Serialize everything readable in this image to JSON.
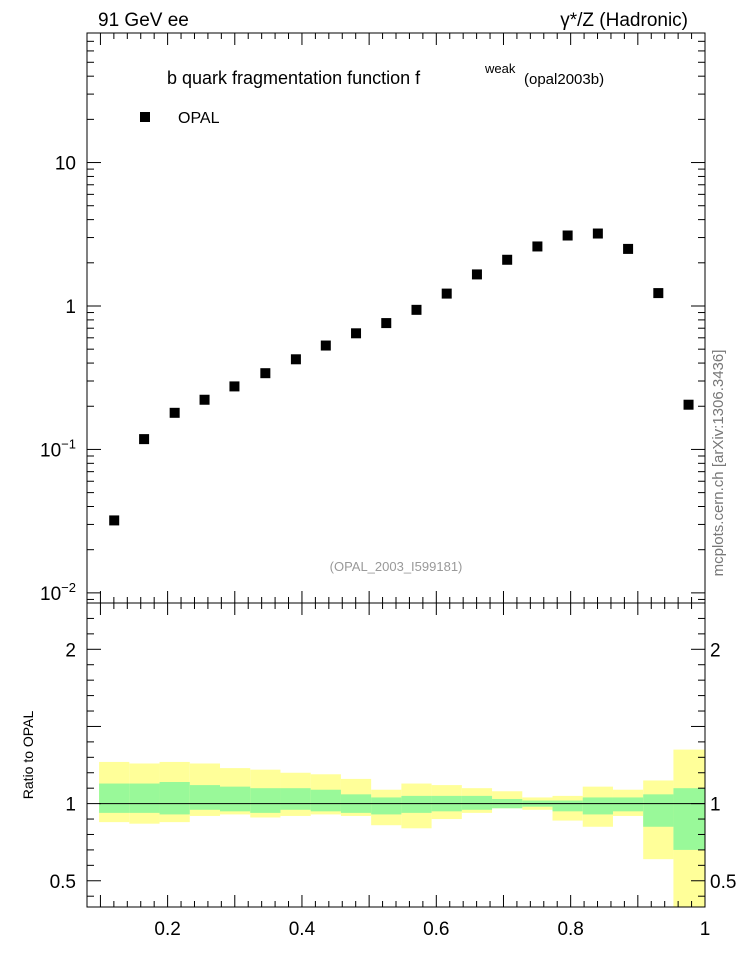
{
  "header": {
    "left": "91 GeV ee",
    "right": "γ*/Z (Hadronic)"
  },
  "title": {
    "main": "b quark fragmentation function f",
    "superscript": "weak",
    "suffix": "(opal2003b)"
  },
  "legend": {
    "label": "OPAL",
    "position": "top-left"
  },
  "analysis_id": "(OPAL_2003_I599181)",
  "side_label": "mcplots.cern.ch [arXiv:1306.3436]",
  "ratio_ylabel": "Ratio to OPAL",
  "colors": {
    "inner_band": "#99f999",
    "outer_band": "#ffff99",
    "marker": "#000000",
    "side_label": "#777777",
    "analysis_id": "#999999"
  },
  "chart_data": [
    {
      "type": "scatter",
      "name": "main",
      "yscale": "log",
      "xlim": [
        0.08,
        1.0
      ],
      "ylim": [
        0.0085,
        80
      ],
      "yticks": [
        {
          "v": 10,
          "base": "10",
          "exp": ""
        },
        {
          "v": 1,
          "base": "1",
          "exp": ""
        },
        {
          "v": 0.1,
          "base": "10",
          "exp": "−1"
        },
        {
          "v": 0.01,
          "base": "10",
          "exp": "−2"
        }
      ],
      "x": [
        0.1205,
        0.165,
        0.2105,
        0.255,
        0.2995,
        0.3455,
        0.391,
        0.4355,
        0.4805,
        0.5255,
        0.5705,
        0.6155,
        0.6605,
        0.7055,
        0.7505,
        0.7955,
        0.8405,
        0.8855,
        0.9305,
        0.9755
      ],
      "y": [
        0.032,
        0.118,
        0.18,
        0.222,
        0.275,
        0.34,
        0.425,
        0.53,
        0.645,
        0.76,
        0.94,
        1.22,
        1.66,
        2.1,
        2.6,
        3.1,
        3.2,
        2.5,
        1.23,
        0.205
      ]
    },
    {
      "type": "area",
      "name": "ratio",
      "ylabel": "Ratio to OPAL",
      "xlim": [
        0.08,
        1.0
      ],
      "ylim": [
        0.33,
        2.3
      ],
      "yticks": [
        2,
        1,
        0.5
      ],
      "xticks": [
        0.2,
        0.4,
        0.6,
        0.8,
        1
      ],
      "xtick_labels": [
        "0.2",
        "0.4",
        "0.6",
        "0.8",
        "1"
      ],
      "bin_edges": [
        0.098,
        0.143,
        0.188,
        0.233,
        0.278,
        0.323,
        0.368,
        0.413,
        0.458,
        0.503,
        0.548,
        0.593,
        0.638,
        0.683,
        0.728,
        0.773,
        0.818,
        0.863,
        0.908,
        0.953,
        1.0
      ],
      "inner_hi": [
        1.13,
        1.13,
        1.14,
        1.12,
        1.11,
        1.1,
        1.1,
        1.09,
        1.06,
        1.04,
        1.05,
        1.05,
        1.05,
        1.03,
        1.02,
        1.02,
        1.04,
        1.04,
        1.06,
        1.1
      ],
      "inner_lo": [
        0.94,
        0.94,
        0.93,
        0.96,
        0.95,
        0.94,
        0.96,
        0.95,
        0.94,
        0.93,
        0.94,
        0.95,
        0.96,
        0.97,
        0.98,
        0.95,
        0.93,
        0.95,
        0.85,
        0.7
      ],
      "outer_hi": [
        1.27,
        1.26,
        1.27,
        1.26,
        1.23,
        1.22,
        1.2,
        1.19,
        1.16,
        1.09,
        1.13,
        1.12,
        1.1,
        1.08,
        1.04,
        1.05,
        1.11,
        1.09,
        1.15,
        1.35
      ],
      "outer_lo": [
        0.88,
        0.87,
        0.88,
        0.92,
        0.93,
        0.91,
        0.92,
        0.93,
        0.92,
        0.86,
        0.84,
        0.9,
        0.94,
        0.97,
        0.96,
        0.89,
        0.85,
        0.92,
        0.64,
        0.33
      ],
      "reference": 1
    }
  ]
}
